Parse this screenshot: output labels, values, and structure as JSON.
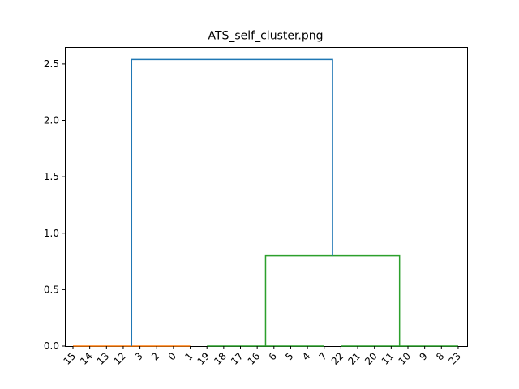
{
  "chart_data": {
    "type": "dendrogram",
    "title": "ATS_self_cluster.png",
    "xlabel": "",
    "ylabel": "",
    "ylim": [
      0,
      2.65
    ],
    "yticks": [
      0.0,
      0.5,
      1.0,
      1.5,
      2.0,
      2.5
    ],
    "ytick_labels": [
      "0.0",
      "0.5",
      "1.0",
      "1.5",
      "2.0",
      "2.5"
    ],
    "leaf_order": [
      "15",
      "14",
      "13",
      "12",
      "3",
      "2",
      "0",
      "1",
      "19",
      "18",
      "17",
      "16",
      "6",
      "5",
      "4",
      "7",
      "22",
      "21",
      "20",
      "11",
      "10",
      "9",
      "8",
      "23"
    ],
    "clusters": [
      {
        "color": "#ff7f0e",
        "leaves": [
          "15",
          "14",
          "13",
          "12",
          "3",
          "2",
          "0",
          "1"
        ],
        "merge_height": 0.0
      },
      {
        "color": "#2ca02c",
        "leaves": [
          "19",
          "18",
          "17",
          "16",
          "6",
          "5",
          "4",
          "7"
        ],
        "merge_height": 0.0
      },
      {
        "color": "#2ca02c",
        "leaves": [
          "22",
          "21",
          "20",
          "11",
          "10",
          "9",
          "8",
          "23"
        ],
        "merge_height": 0.0
      }
    ],
    "links": [
      {
        "left": {
          "cluster_leaves": [
            "19",
            "18",
            "17",
            "16",
            "6",
            "5",
            "4",
            "7"
          ],
          "height": 0.0
        },
        "right": {
          "cluster_leaves": [
            "22",
            "21",
            "20",
            "11",
            "10",
            "9",
            "8",
            "23"
          ],
          "height": 0.0
        },
        "height": 0.8,
        "color": "#2ca02c"
      },
      {
        "left": {
          "cluster_leaves": [
            "15",
            "14",
            "13",
            "12",
            "3",
            "2",
            "0",
            "1"
          ],
          "height": 0.0
        },
        "right": {
          "link_index": 0,
          "height": 0.8
        },
        "height": 2.54,
        "color": "#1f77b4"
      }
    ],
    "grid": false,
    "legend": "none"
  }
}
